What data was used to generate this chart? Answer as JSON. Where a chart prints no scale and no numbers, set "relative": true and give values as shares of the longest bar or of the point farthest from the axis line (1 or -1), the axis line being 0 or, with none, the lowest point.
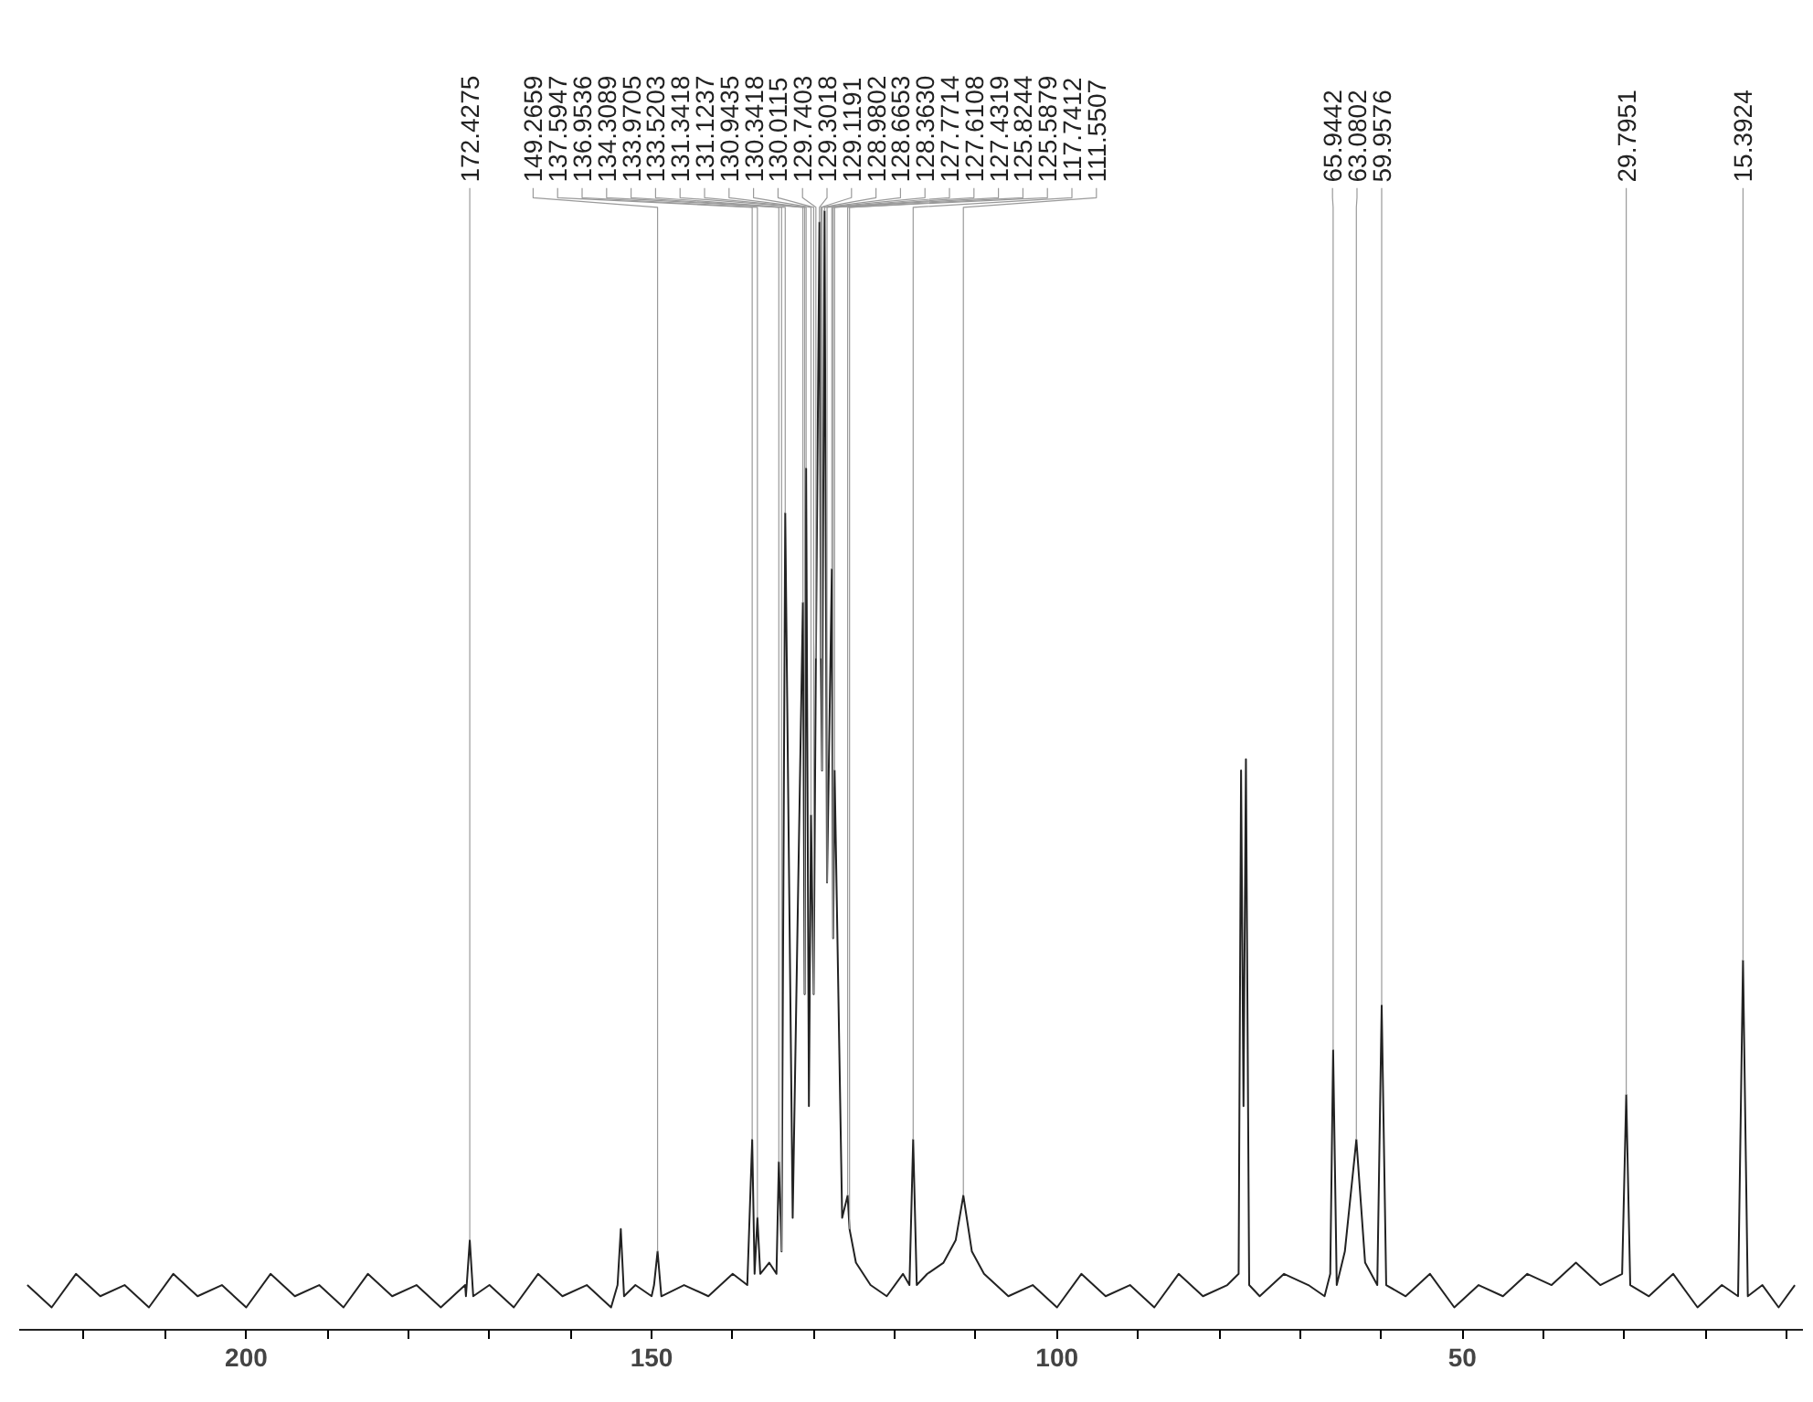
{
  "chart_data": {
    "type": "line",
    "relative": true,
    "xlim": [
      228,
      8
    ],
    "xticks": [
      {
        "value": 220,
        "label": null
      },
      {
        "value": 210,
        "label": null
      },
      200,
      {
        "value": 190,
        "label": null
      },
      {
        "value": 180,
        "label": null
      },
      {
        "value": 170,
        "label": null
      },
      {
        "value": 160,
        "label": null
      },
      150,
      {
        "value": 140,
        "label": null
      },
      {
        "value": 130,
        "label": null
      },
      {
        "value": 120,
        "label": null
      },
      {
        "value": 110,
        "label": null
      },
      100,
      {
        "value": 90,
        "label": null
      },
      {
        "value": 80,
        "label": null
      },
      {
        "value": 70,
        "label": null
      },
      {
        "value": 60,
        "label": null
      },
      50,
      {
        "value": 40,
        "label": null
      },
      {
        "value": 30,
        "label": null
      },
      {
        "value": 20,
        "label": null
      },
      {
        "value": 10,
        "label": null
      }
    ],
    "tick_labels": "x",
    "grid": false,
    "marker": "none",
    "line_style": "solid",
    "series": [
      {
        "color": "#222222",
        "x": [
          227,
          224,
          221,
          218,
          215,
          212,
          209,
          206,
          203,
          200,
          197,
          194,
          191,
          188,
          185,
          182,
          179,
          176,
          173,
          172.9,
          172.4275,
          172.0,
          170,
          167,
          164,
          161,
          158,
          155,
          154.2,
          153.8,
          153.4,
          152,
          150,
          149.7,
          149.2659,
          148.8,
          146,
          143,
          140,
          138.2,
          137.5947,
          137.3,
          136.9536,
          136.6,
          135.5,
          134.6,
          134.3089,
          133.9705,
          133.5203,
          132.6,
          131.3418,
          131.1237,
          130.9435,
          130.6,
          130.3418,
          130.0115,
          129.7403,
          129.3018,
          129.1191,
          128.9802,
          128.6653,
          128.363,
          127.7714,
          127.6108,
          127.4319,
          126.5,
          125.8244,
          125.5879,
          124.8,
          123,
          121,
          119,
          118.2,
          117.7412,
          117.3,
          116,
          114,
          112.5,
          111.5507,
          110.5,
          109,
          106,
          103,
          100,
          97,
          94,
          91,
          88,
          85,
          82,
          79,
          77.6,
          77.3,
          77.0,
          76.7,
          76.3,
          75,
          72,
          69,
          67,
          66.3,
          65.9442,
          65.5,
          64.5,
          63.0802,
          62.0,
          60.5,
          59.9576,
          59.4,
          57,
          54,
          51,
          48,
          45,
          42,
          39,
          36,
          33,
          30.3,
          29.7951,
          29.3,
          27,
          24,
          21,
          18,
          16.0,
          15.3924,
          14.8,
          13,
          11,
          9
        ],
        "values": [
          0.04,
          0.02,
          0.05,
          0.03,
          0.04,
          0.02,
          0.05,
          0.03,
          0.04,
          0.02,
          0.05,
          0.03,
          0.04,
          0.02,
          0.05,
          0.03,
          0.04,
          0.02,
          0.04,
          0.03,
          0.08,
          0.03,
          0.04,
          0.02,
          0.05,
          0.03,
          0.04,
          0.02,
          0.04,
          0.09,
          0.03,
          0.04,
          0.03,
          0.04,
          0.07,
          0.03,
          0.04,
          0.03,
          0.05,
          0.04,
          0.17,
          0.05,
          0.1,
          0.05,
          0.06,
          0.05,
          0.15,
          0.07,
          0.73,
          0.1,
          0.65,
          0.3,
          0.77,
          0.2,
          0.46,
          0.3,
          0.6,
          0.99,
          0.6,
          0.5,
          1,
          0.4,
          0.68,
          0.35,
          0.5,
          0.1,
          0.12,
          0.09,
          0.06,
          0.04,
          0.03,
          0.05,
          0.04,
          0.17,
          0.04,
          0.05,
          0.06,
          0.08,
          0.12,
          0.07,
          0.05,
          0.03,
          0.04,
          0.02,
          0.05,
          0.03,
          0.04,
          0.02,
          0.05,
          0.03,
          0.04,
          0.05,
          0.5,
          0.2,
          0.51,
          0.04,
          0.03,
          0.05,
          0.04,
          0.03,
          0.05,
          0.25,
          0.04,
          0.07,
          0.17,
          0.06,
          0.04,
          0.29,
          0.04,
          0.03,
          0.05,
          0.02,
          0.04,
          0.03,
          0.05,
          0.04,
          0.06,
          0.04,
          0.05,
          0.21,
          0.04,
          0.03,
          0.05,
          0.02,
          0.04,
          0.03,
          0.33,
          0.03,
          0.04,
          0.02,
          0.04
        ]
      }
    ],
    "annotations": [
      {
        "text": "172.4275",
        "x": 172.4275,
        "y": 0.08
      },
      {
        "text": "149.2659",
        "x": 149.2659,
        "y": 0.07
      },
      {
        "text": "137.5947",
        "x": 137.5947,
        "y": 0.17
      },
      {
        "text": "136.9536",
        "x": 136.9536,
        "y": 0.1
      },
      {
        "text": "134.3089",
        "x": 134.3089,
        "y": 0.15
      },
      {
        "text": "133.9705",
        "x": 133.9705,
        "y": 0.07
      },
      {
        "text": "133.5203",
        "x": 133.5203,
        "y": 0.73
      },
      {
        "text": "131.3418",
        "x": 131.3418,
        "y": 0.65
      },
      {
        "text": "131.1237",
        "x": 131.1237,
        "y": 0.3
      },
      {
        "text": "130.9435",
        "x": 130.9435,
        "y": 0.77
      },
      {
        "text": "130.3418",
        "x": 130.3418,
        "y": 0.46
      },
      {
        "text": "130.0115",
        "x": 130.0115,
        "y": 0.3
      },
      {
        "text": "129.7403",
        "x": 129.7403,
        "y": 0.6
      },
      {
        "text": "129.3018",
        "x": 129.3018,
        "y": 0.99
      },
      {
        "text": "129.1191",
        "x": 129.1191,
        "y": 0.6
      },
      {
        "text": "128.9802",
        "x": 128.9802,
        "y": 0.5
      },
      {
        "text": "128.6653",
        "x": 128.6653,
        "y": 1
      },
      {
        "text": "128.3630",
        "x": 128.363,
        "y": 0.4
      },
      {
        "text": "127.7714",
        "x": 127.7714,
        "y": 0.68
      },
      {
        "text": "127.6108",
        "x": 127.6108,
        "y": 0.35
      },
      {
        "text": "127.4319",
        "x": 127.4319,
        "y": 0.5
      },
      {
        "text": "125.8244",
        "x": 125.8244,
        "y": 0.12
      },
      {
        "text": "125.5879",
        "x": 125.5879,
        "y": 0.09
      },
      {
        "text": "117.7412",
        "x": 117.7412,
        "y": 0.17
      },
      {
        "text": "111.5507",
        "x": 111.5507,
        "y": 0.12
      },
      {
        "text": "65.9442",
        "x": 65.9442,
        "y": 0.25
      },
      {
        "text": "63.0802",
        "x": 63.0802,
        "y": 0.17
      },
      {
        "text": "59.9576",
        "x": 59.9576,
        "y": 0.29
      },
      {
        "text": "29.7951",
        "x": 29.7951,
        "y": 0.21
      },
      {
        "text": "15.3924",
        "x": 15.3924,
        "y": 0.33
      }
    ]
  }
}
